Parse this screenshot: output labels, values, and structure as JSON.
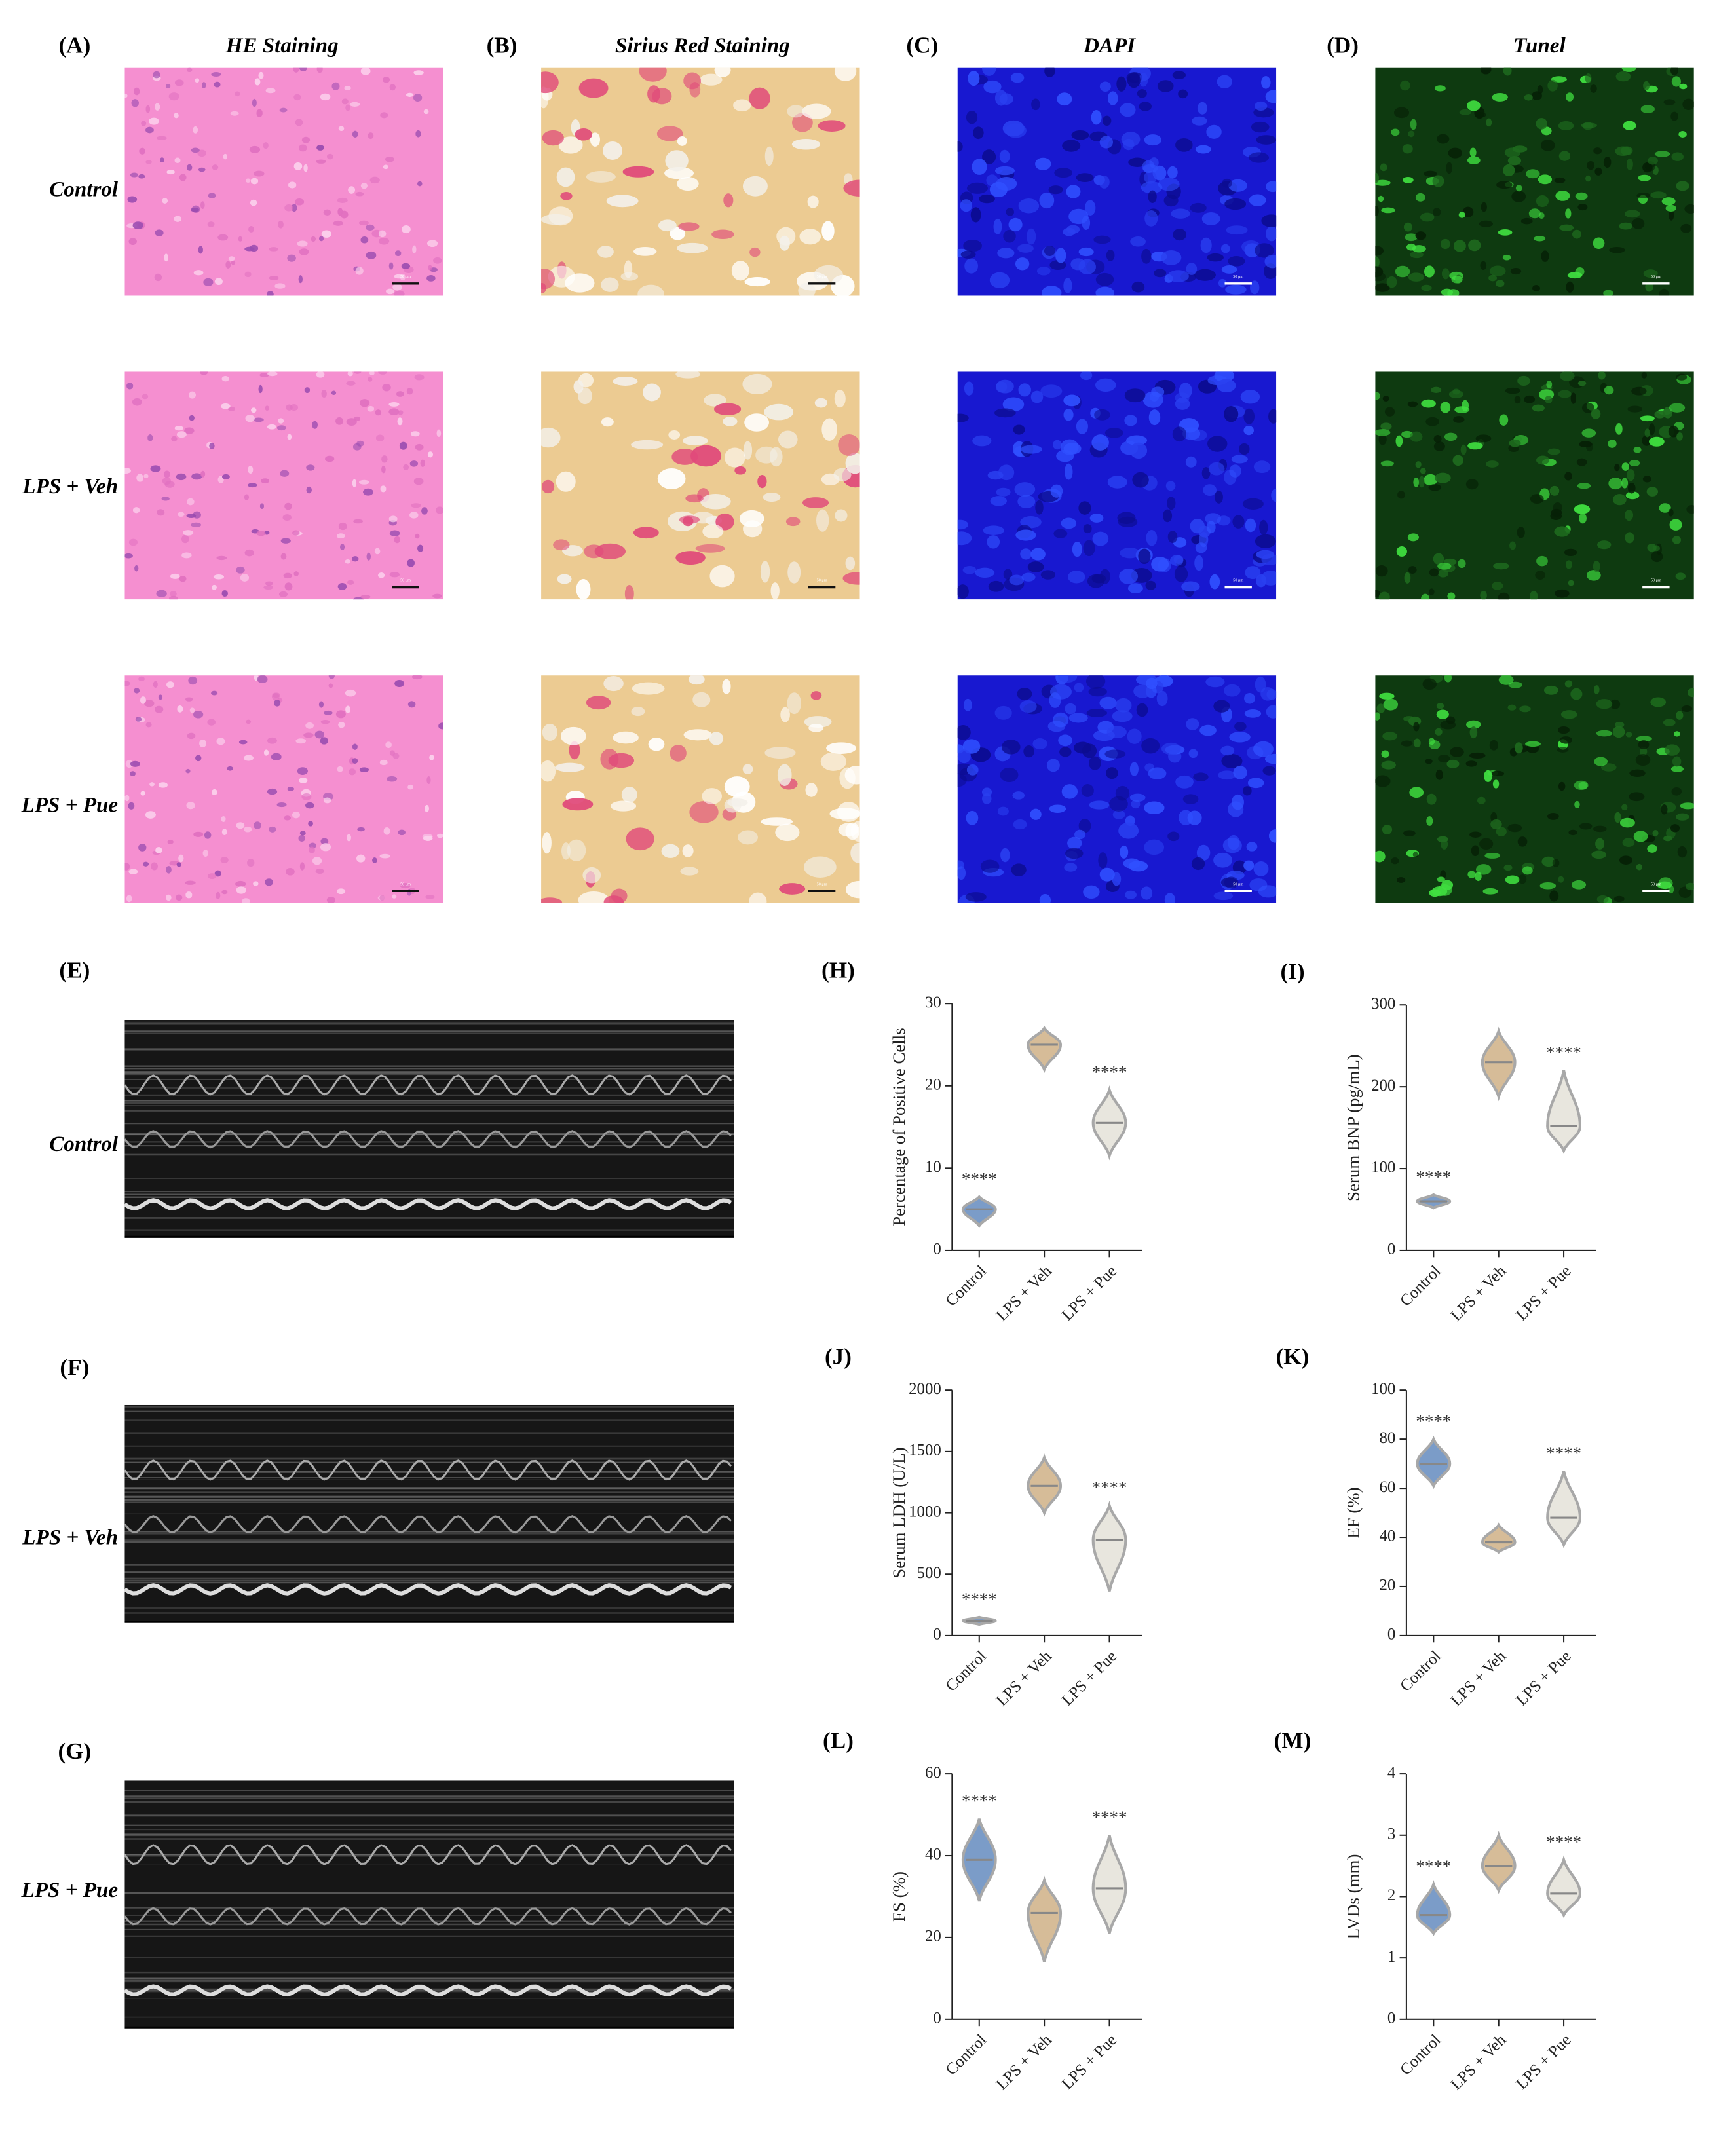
{
  "figure": {
    "micro_panels": [
      {
        "label": "(A)",
        "title": "HE Staining"
      },
      {
        "label": "(B)",
        "title": "Sirius Red Staining"
      },
      {
        "label": "(C)",
        "title": "DAPI"
      },
      {
        "label": "(D)",
        "title": "Tunel"
      }
    ],
    "micro_rows": [
      "Control",
      "LPS + Veh",
      "LPS + Pue"
    ],
    "scale_bar": "50 μm",
    "echo_panels": [
      {
        "label": "(E)",
        "row": "Control"
      },
      {
        "label": "(F)",
        "row": "LPS + Veh"
      },
      {
        "label": "(G)",
        "row": "LPS + Pue"
      }
    ]
  },
  "chart_data": [
    {
      "type": "violin",
      "panel": "(H)",
      "y_label": "Percentage of Positive Cells",
      "categories": [
        "Control",
        "LPS + Veh",
        "LPS + Pue"
      ],
      "values": [
        5,
        25,
        15.5
      ],
      "lows": [
        3,
        22,
        11.5
      ],
      "highs": [
        6.5,
        27,
        19.5
      ],
      "colors": [
        "#7b9cc8",
        "#d6bc98",
        "#e8e6de"
      ],
      "annotations": [
        "****",
        null,
        "****"
      ],
      "ylim": [
        0,
        30
      ],
      "yticks": [
        0,
        10,
        20,
        30
      ]
    },
    {
      "type": "violin",
      "panel": "(I)",
      "y_label": "Serum BNP (pg/mL)",
      "categories": [
        "Control",
        "LPS + Veh",
        "LPS + Pue"
      ],
      "values": [
        60,
        230,
        152
      ],
      "lows": [
        52,
        188,
        122
      ],
      "highs": [
        68,
        268,
        220
      ],
      "colors": [
        "#7b9cc8",
        "#d6bc98",
        "#e8e6de"
      ],
      "annotations": [
        "****",
        null,
        "****"
      ],
      "ylim": [
        0,
        300
      ],
      "yticks": [
        0,
        100,
        200,
        300
      ]
    },
    {
      "type": "violin",
      "panel": "(J)",
      "y_label": "Serum LDH (U/L)",
      "categories": [
        "Control",
        "LPS + Veh",
        "LPS + Pue"
      ],
      "values": [
        120,
        1220,
        780
      ],
      "lows": [
        90,
        1000,
        360
      ],
      "highs": [
        150,
        1450,
        1060
      ],
      "colors": [
        "#7b9cc8",
        "#d6bc98",
        "#e8e6de"
      ],
      "annotations": [
        "****",
        null,
        "****"
      ],
      "ylim": [
        0,
        2000
      ],
      "yticks": [
        0,
        500,
        1000,
        1500,
        2000
      ]
    },
    {
      "type": "violin",
      "panel": "(K)",
      "y_label": "EF (%)",
      "categories": [
        "Control",
        "LPS + Veh",
        "LPS + Pue"
      ],
      "values": [
        70,
        38,
        48
      ],
      "lows": [
        61,
        34,
        37
      ],
      "highs": [
        80,
        45,
        67
      ],
      "colors": [
        "#7b9cc8",
        "#d6bc98",
        "#e8e6de"
      ],
      "annotations": [
        "****",
        null,
        "****"
      ],
      "ylim": [
        0,
        100
      ],
      "yticks": [
        0,
        20,
        40,
        60,
        80,
        100
      ]
    },
    {
      "type": "violin",
      "panel": "(L)",
      "y_label": "FS (%)",
      "categories": [
        "Control",
        "LPS + Veh",
        "LPS + Pue"
      ],
      "values": [
        39,
        26,
        32
      ],
      "lows": [
        29,
        14,
        21
      ],
      "highs": [
        49,
        34,
        45
      ],
      "colors": [
        "#7b9cc8",
        "#d6bc98",
        "#e8e6de"
      ],
      "annotations": [
        "****",
        null,
        "****"
      ],
      "ylim": [
        0,
        60
      ],
      "yticks": [
        0,
        20,
        40,
        60
      ]
    },
    {
      "type": "violin",
      "panel": "(M)",
      "y_label": "LVDs (mm)",
      "categories": [
        "Control",
        "LPS + Veh",
        "LPS + Pue"
      ],
      "values": [
        1.7,
        2.5,
        2.05
      ],
      "lows": [
        1.4,
        2.1,
        1.7
      ],
      "highs": [
        2.2,
        3.0,
        2.6
      ],
      "colors": [
        "#7b9cc8",
        "#d6bc98",
        "#e8e6de"
      ],
      "annotations": [
        "****",
        null,
        "****"
      ],
      "ylim": [
        0,
        4
      ],
      "yticks": [
        0,
        1,
        2,
        3,
        4
      ]
    }
  ]
}
